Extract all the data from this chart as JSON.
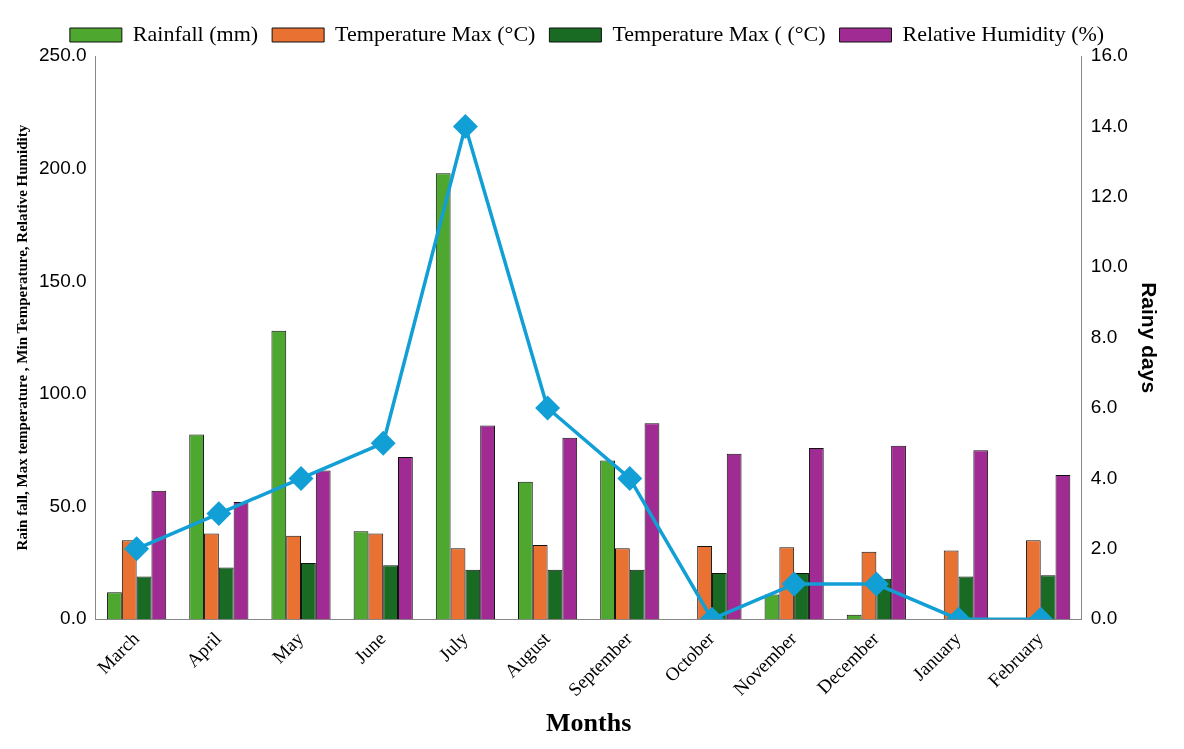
{
  "chart_data": {
    "type": "bar",
    "xlabel": "Months",
    "ylabel": "Rain fall, Max temperature , Min Temperature, Relative Humidity",
    "y2label": "Rainy days",
    "categories": [
      "March",
      "April",
      "May",
      "June",
      "July",
      "August",
      "September",
      "October",
      "November",
      "December",
      "January",
      "February"
    ],
    "series": [
      {
        "name": "Rainfall (mm)",
        "color": "#4ea72e",
        "values": [
          12,
          82,
          128,
          39,
          198,
          61,
          70.5,
          0,
          11,
          2,
          0,
          0
        ]
      },
      {
        "name": "Temperature Max (°C)",
        "color": "#e97132",
        "values": [
          35,
          38,
          37,
          38,
          31.5,
          33,
          31.5,
          32.5,
          32,
          30,
          30.5,
          35
        ]
      },
      {
        "name": "Temperature Max ( (°C)",
        "color": "#196b24",
        "values": [
          19,
          23,
          25,
          24,
          22,
          22,
          22,
          20.5,
          20.5,
          18,
          19,
          19.5
        ]
      },
      {
        "name": "Relative Humidity (%)",
        "color": "#a02b93",
        "values": [
          57,
          52,
          66,
          72,
          86,
          80.5,
          87,
          73.5,
          76,
          77,
          75,
          64
        ]
      },
      {
        "type": "line",
        "axis": "y2",
        "color": "#119fd6",
        "marker": "diamond",
        "values": [
          2,
          3,
          4,
          5,
          14,
          6,
          4,
          0,
          1,
          1,
          0,
          0
        ]
      }
    ],
    "ylim": [
      0,
      250
    ],
    "yticks": [
      {
        "value": 0,
        "label": "0.0"
      },
      {
        "value": 50,
        "label": "50.0"
      },
      {
        "value": 100,
        "label": "100.0"
      },
      {
        "value": 150,
        "label": "150.0"
      },
      {
        "value": 200,
        "label": "200.0"
      },
      {
        "value": 250,
        "label": "250.0"
      }
    ],
    "y2lim": [
      0,
      16
    ],
    "y2ticks": [
      {
        "value": 0,
        "label": "0.0"
      },
      {
        "value": 2,
        "label": "2.0"
      },
      {
        "value": 4,
        "label": "4.0"
      },
      {
        "value": 6,
        "label": "6.0"
      },
      {
        "value": 8,
        "label": "8.0"
      },
      {
        "value": 10,
        "label": "10.0"
      },
      {
        "value": 12,
        "label": "12.0"
      },
      {
        "value": 14,
        "label": "14.0"
      },
      {
        "value": 16,
        "label": "16.0"
      }
    ],
    "grid": false,
    "legend": "top"
  }
}
